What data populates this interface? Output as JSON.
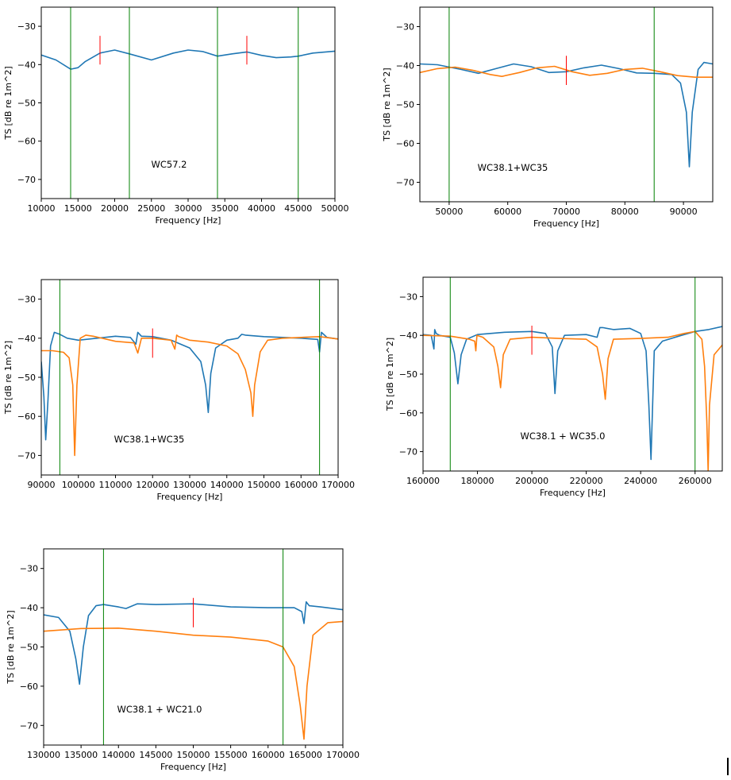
{
  "colors": {
    "blue": "#1f77b4",
    "orange": "#ff7f0e",
    "green": "#008000",
    "red": "#ff0000"
  },
  "chart_data": [
    {
      "type": "line",
      "annotation": "WC57.2",
      "xlabel": "Frequency [Hz]",
      "ylabel": "TS [dB re 1m^2]",
      "xlim": [
        10000,
        50000
      ],
      "ylim": [
        -75,
        -25
      ],
      "xticks": [
        10000,
        15000,
        20000,
        25000,
        30000,
        35000,
        40000,
        45000,
        50000
      ],
      "xtick_labels": [
        "10000",
        "15000",
        "20000",
        "25000",
        "30000",
        "35000",
        "40000",
        "45000",
        "50000"
      ],
      "yticks": [
        -30,
        -40,
        -50,
        -60,
        -70
      ],
      "ytick_labels": [
        "−30",
        "−40",
        "−50",
        "−60",
        "−70"
      ],
      "vlines": [
        14000,
        22000,
        34000,
        45000
      ],
      "markers": [
        {
          "x": 18000,
          "y": [
            -40,
            -32.5
          ]
        },
        {
          "x": 38000,
          "y": [
            -40,
            -32.5
          ]
        }
      ],
      "series": [
        {
          "color": "blue",
          "x": [
            10000,
            12000,
            14000,
            15000,
            16000,
            18000,
            20000,
            22000,
            25000,
            28000,
            30000,
            32000,
            34000,
            36000,
            38000,
            40000,
            42000,
            44000,
            45000,
            47000,
            50000
          ],
          "y": [
            -37.5,
            -38.8,
            -41.2,
            -40.8,
            -39.2,
            -37.0,
            -36.2,
            -37.2,
            -38.8,
            -37.0,
            -36.2,
            -36.6,
            -37.8,
            -37.2,
            -36.7,
            -37.6,
            -38.2,
            -38.0,
            -37.8,
            -37.0,
            -36.5
          ]
        }
      ]
    },
    {
      "type": "line",
      "annotation": "WC38.1+WC35",
      "xlabel": "Frequency [Hz]",
      "ylabel": "TS [dB re 1m^2]",
      "xlim": [
        45000,
        95000
      ],
      "ylim": [
        -75,
        -25
      ],
      "xticks": [
        50000,
        60000,
        70000,
        80000,
        90000
      ],
      "xtick_labels": [
        "50000",
        "60000",
        "70000",
        "80000",
        "90000"
      ],
      "yticks": [
        -30,
        -40,
        -50,
        -60,
        -70
      ],
      "ytick_labels": [
        "−30",
        "−40",
        "−50",
        "−60",
        "−70"
      ],
      "vlines": [
        50000,
        85000
      ],
      "markers": [
        {
          "x": 70000,
          "y": [
            -45,
            -37.5
          ]
        }
      ],
      "series": [
        {
          "color": "blue",
          "x": [
            45000,
            48000,
            52000,
            55000,
            58000,
            61000,
            64000,
            67000,
            70000,
            73000,
            76000,
            79000,
            82000,
            85000,
            88000,
            89500,
            90500,
            91000,
            91500,
            92500,
            93500,
            95000
          ],
          "y": [
            -39.6,
            -39.8,
            -41.0,
            -42.0,
            -40.8,
            -39.6,
            -40.3,
            -41.8,
            -41.6,
            -40.6,
            -39.9,
            -40.8,
            -41.9,
            -42.0,
            -42.3,
            -44.5,
            -52.0,
            -66.0,
            -52.0,
            -41.0,
            -39.2,
            -39.6
          ]
        },
        {
          "color": "orange",
          "x": [
            45000,
            48000,
            51000,
            54000,
            57000,
            59000,
            62000,
            65000,
            68000,
            71000,
            74000,
            77000,
            80000,
            83000,
            86000,
            89000,
            92000,
            95000
          ],
          "y": [
            -41.8,
            -40.8,
            -40.4,
            -41.2,
            -42.3,
            -42.8,
            -41.8,
            -40.6,
            -40.2,
            -41.6,
            -42.5,
            -42.0,
            -41.0,
            -40.7,
            -41.6,
            -42.6,
            -43.0,
            -43.0
          ]
        }
      ]
    },
    {
      "type": "line",
      "annotation": "WC38.1+WC35",
      "xlabel": "Frequency [Hz]",
      "ylabel": "TS [dB re 1m^2]",
      "xlim": [
        90000,
        170000
      ],
      "ylim": [
        -75,
        -25
      ],
      "xticks": [
        90000,
        100000,
        110000,
        120000,
        130000,
        140000,
        150000,
        160000,
        170000
      ],
      "xtick_labels": [
        "90000",
        "100000",
        "110000",
        "120000",
        "130000",
        "140000",
        "150000",
        "160000",
        "170000"
      ],
      "yticks": [
        -30,
        -40,
        -50,
        -60,
        -70
      ],
      "ytick_labels": [
        "−30",
        "−40",
        "−50",
        "−60",
        "−70"
      ],
      "vlines": [
        95000,
        165000
      ],
      "markers": [
        {
          "x": 120000,
          "y": [
            -45,
            -37.5
          ]
        }
      ],
      "series": [
        {
          "color": "blue",
          "x": [
            90000,
            90700,
            91200,
            91800,
            92500,
            93500,
            95000,
            97000,
            100000,
            105000,
            110000,
            114000,
            115500,
            116000,
            117000,
            120000,
            125000,
            130000,
            133000,
            134300,
            135000,
            135700,
            137000,
            140000,
            143000,
            144000,
            145000,
            150000,
            155000,
            160000,
            164500,
            165000,
            165500,
            167000,
            170000
          ],
          "y": [
            -46.0,
            -55.0,
            -66.0,
            -56.0,
            -42.0,
            -38.5,
            -39.0,
            -40.0,
            -40.5,
            -40.0,
            -39.5,
            -39.8,
            -41.5,
            -38.5,
            -39.5,
            -39.6,
            -40.5,
            -42.5,
            -46.0,
            -52.0,
            -59.0,
            -49.0,
            -42.5,
            -40.5,
            -40.0,
            -39.0,
            -39.2,
            -39.6,
            -39.8,
            -40.0,
            -40.3,
            -43.5,
            -38.5,
            -39.8,
            -40.2
          ]
        },
        {
          "color": "orange",
          "x": [
            90000,
            93000,
            96000,
            97500,
            98500,
            99000,
            99600,
            100500,
            102000,
            104000,
            110000,
            115000,
            116000,
            117000,
            120000,
            125000,
            126000,
            126500,
            127000,
            130000,
            135000,
            140000,
            143000,
            145000,
            146500,
            147000,
            147500,
            149000,
            151000,
            155000,
            160000,
            165000,
            170000
          ],
          "y": [
            -43.2,
            -43.2,
            -43.6,
            -45.0,
            -52.0,
            -70.0,
            -52.0,
            -40.0,
            -39.2,
            -39.5,
            -40.8,
            -41.2,
            -43.8,
            -40.0,
            -40.0,
            -40.5,
            -42.8,
            -39.2,
            -39.6,
            -40.5,
            -41.0,
            -42.0,
            -44.0,
            -48.0,
            -54.0,
            -60.0,
            -52.0,
            -43.5,
            -40.5,
            -40.0,
            -39.8,
            -39.6,
            -40.2
          ]
        }
      ]
    },
    {
      "type": "line",
      "annotation": "WC38.1 + WC35.0",
      "xlabel": "Frequency [Hz]",
      "ylabel": "TS [dB re 1m^2]",
      "xlim": [
        160000,
        270000
      ],
      "ylim": [
        -75,
        -25
      ],
      "xticks": [
        160000,
        180000,
        200000,
        220000,
        240000,
        260000
      ],
      "xtick_labels": [
        "160000",
        "180000",
        "200000",
        "220000",
        "240000",
        "260000"
      ],
      "yticks": [
        -30,
        -40,
        -50,
        -60,
        -70
      ],
      "ytick_labels": [
        "−30",
        "−40",
        "−50",
        "−60",
        "−70"
      ],
      "vlines": [
        170000,
        260000
      ],
      "markers": [
        {
          "x": 200000,
          "y": [
            -45,
            -37.5
          ]
        }
      ],
      "series": [
        {
          "color": "blue",
          "x": [
            160000,
            163000,
            164000,
            164300,
            164800,
            166000,
            170000,
            171500,
            172800,
            174000,
            176000,
            180000,
            190000,
            200000,
            205000,
            207500,
            208500,
            209500,
            212000,
            220000,
            224000,
            225000,
            226000,
            230000,
            236000,
            240000,
            242000,
            243000,
            243800,
            245000,
            248000,
            255000,
            260000,
            265000,
            270000
          ],
          "y": [
            -39.8,
            -40.0,
            -43.5,
            -38.5,
            -39.5,
            -40.0,
            -40.5,
            -44.5,
            -52.5,
            -45.0,
            -41.0,
            -39.8,
            -39.2,
            -39.0,
            -39.5,
            -43.0,
            -55.0,
            -44.0,
            -40.0,
            -39.8,
            -40.5,
            -38.0,
            -38.0,
            -38.5,
            -38.2,
            -39.5,
            -44.0,
            -58.0,
            -72.0,
            -44.0,
            -41.5,
            -40.0,
            -39.0,
            -38.5,
            -37.7
          ]
        },
        {
          "color": "orange",
          "x": [
            160000,
            170000,
            177000,
            179000,
            179400,
            179800,
            182000,
            186000,
            187500,
            188500,
            189500,
            192000,
            200000,
            210000,
            220000,
            224000,
            226000,
            227000,
            228000,
            230000,
            240000,
            250000,
            256000,
            260000,
            262500,
            263500,
            264300,
            264800,
            265300,
            267000,
            270000
          ],
          "y": [
            -40.0,
            -40.2,
            -41.0,
            -41.5,
            -44.0,
            -40.0,
            -40.5,
            -43.0,
            -48.0,
            -53.5,
            -45.0,
            -41.0,
            -40.5,
            -40.8,
            -41.0,
            -43.0,
            -50.0,
            -56.5,
            -46.0,
            -41.0,
            -40.8,
            -40.5,
            -39.5,
            -39.0,
            -41.0,
            -48.0,
            -62.0,
            -75.0,
            -58.0,
            -45.0,
            -42.5
          ]
        }
      ]
    },
    {
      "type": "line",
      "annotation": "WC38.1 + WC21.0",
      "xlabel": "Frequency [Hz]",
      "ylabel": "TS [dB re 1m^2]",
      "xlim": [
        130000,
        170000
      ],
      "ylim": [
        -75,
        -25
      ],
      "xticks": [
        130000,
        135000,
        140000,
        145000,
        150000,
        155000,
        160000,
        165000,
        170000
      ],
      "xtick_labels": [
        "130000",
        "135000",
        "140000",
        "145000",
        "150000",
        "155000",
        "160000",
        "165000",
        "170000"
      ],
      "yticks": [
        -30,
        -40,
        -50,
        -60,
        -70
      ],
      "ytick_labels": [
        "−30",
        "−40",
        "−50",
        "−60",
        "−70"
      ],
      "vlines": [
        138000,
        162000
      ],
      "markers": [
        {
          "x": 150000,
          "y": [
            -45,
            -37.5
          ]
        }
      ],
      "series": [
        {
          "color": "blue",
          "x": [
            130000,
            132000,
            133500,
            134300,
            134800,
            135300,
            136000,
            137000,
            138000,
            140000,
            141000,
            142500,
            145000,
            150000,
            155000,
            160000,
            163500,
            164500,
            164800,
            165100,
            165500,
            167000,
            170000
          ],
          "y": [
            -41.8,
            -42.5,
            -46.0,
            -53.0,
            -59.5,
            -50.0,
            -42.0,
            -39.5,
            -39.2,
            -39.8,
            -40.2,
            -39.0,
            -39.2,
            -39.0,
            -39.8,
            -40.0,
            -40.0,
            -41.0,
            -44.0,
            -38.5,
            -39.5,
            -39.8,
            -40.5
          ]
        },
        {
          "color": "orange",
          "x": [
            130000,
            135000,
            140000,
            145000,
            150000,
            155000,
            160000,
            162000,
            163500,
            164300,
            164800,
            165200,
            166000,
            168000,
            170000
          ],
          "y": [
            -46.0,
            -45.3,
            -45.2,
            -46.0,
            -47.0,
            -47.5,
            -48.5,
            -50.0,
            -55.0,
            -65.0,
            -73.5,
            -60.0,
            -47.0,
            -43.8,
            -43.5
          ]
        }
      ]
    }
  ]
}
